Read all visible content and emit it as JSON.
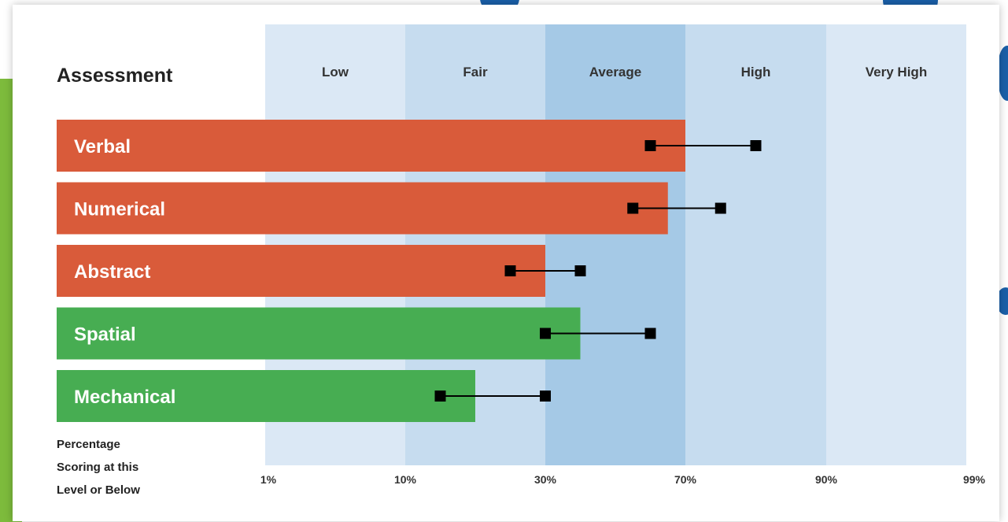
{
  "chart_data": {
    "type": "bar",
    "title": "Assessment",
    "orientation": "horizontal",
    "x_axis_label": [
      "Percentage",
      "Scoring at this",
      "Level or Below"
    ],
    "x_ticks": [
      "1%",
      "10%",
      "30%",
      "70%",
      "90%",
      "99%"
    ],
    "bands": [
      {
        "label": "Low",
        "color": "#dbe8f5"
      },
      {
        "label": "Fair",
        "color": "#c6dcef"
      },
      {
        "label": "Average",
        "color": "#a5c9e6"
      },
      {
        "label": "High",
        "color": "#c6dcef"
      },
      {
        "label": "Very High",
        "color": "#dbe8f5"
      }
    ],
    "categories": [
      "Verbal",
      "Numerical",
      "Abstract",
      "Spatial",
      "Mechanical"
    ],
    "bars": [
      {
        "label": "Verbal",
        "value": 70,
        "range": [
          60,
          80
        ],
        "color": "#d95b3a"
      },
      {
        "label": "Numerical",
        "value": 65,
        "range": [
          55,
          75
        ],
        "color": "#d95b3a"
      },
      {
        "label": "Abstract",
        "value": 30,
        "range": [
          25,
          40
        ],
        "color": "#d95b3a"
      },
      {
        "label": "Spatial",
        "value": 40,
        "range": [
          30,
          60
        ],
        "color": "#47ad52"
      },
      {
        "label": "Mechanical",
        "value": 20,
        "range": [
          15,
          30
        ],
        "color": "#47ad52"
      }
    ],
    "grid": false
  }
}
